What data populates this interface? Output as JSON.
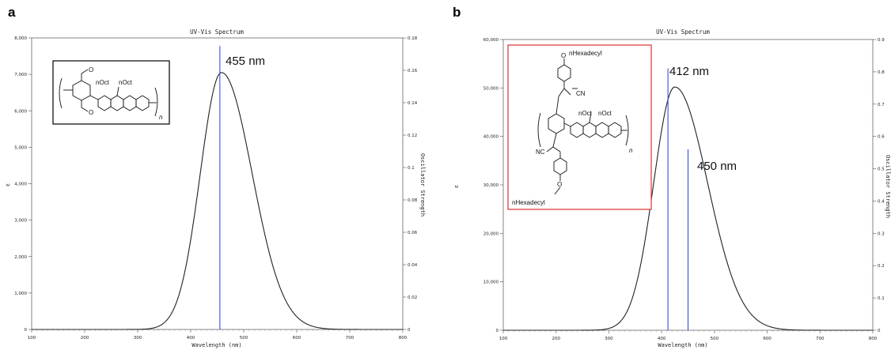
{
  "panels": {
    "a": {
      "letter": "a"
    },
    "b": {
      "letter": "b"
    }
  },
  "colors": {
    "spectrum": "#222222",
    "stick": "#3a4fd6",
    "inset_border_a": "#000000",
    "inset_border_b": "#e03030"
  },
  "chart_data": [
    {
      "type": "line",
      "title": "UV-Vis Spectrum",
      "xlabel": "Wavelength (nm)",
      "ylabel": "ε",
      "y2label": "Oscillator Strength",
      "xlim": [
        100,
        800
      ],
      "ylim": [
        0,
        8000
      ],
      "y2lim": [
        0,
        0.18
      ],
      "x_ticks": [
        100,
        200,
        300,
        400,
        500,
        600,
        700,
        800
      ],
      "y_ticks": [
        0,
        1000,
        2000,
        3000,
        4000,
        5000,
        6000,
        7000,
        8000
      ],
      "y_tick_labels": [
        "0",
        "1,000",
        "2,000",
        "3,000",
        "4,000",
        "5,000",
        "6,000",
        "7,000",
        "8,000"
      ],
      "y2_ticks": [
        0,
        0.02,
        0.04,
        0.06,
        0.08,
        0.1,
        0.12,
        0.14,
        0.16,
        0.18
      ],
      "y2_tick_labels": [
        "0",
        "0.02",
        "0.04",
        "0.06",
        "0.08",
        "0.1",
        "0.12",
        "0.14",
        "0.16",
        "0.18"
      ],
      "spectrum": {
        "peak_x": 458,
        "peak_y": 7050,
        "sigma_left": 40,
        "sigma_right": 58
      },
      "sticks": [
        {
          "x": 455,
          "f": 0.175
        }
      ],
      "annotations": [
        "455 nm"
      ],
      "inset": {
        "labels": [
          "O",
          "O",
          "nOct",
          "nOct",
          "n"
        ]
      }
    },
    {
      "type": "line",
      "title": "UV-Vis Spectrum",
      "xlabel": "Wavelength (nm)",
      "ylabel": "ε",
      "y2label": "Oscillator Strength",
      "xlim": [
        100,
        800
      ],
      "ylim": [
        0,
        60000
      ],
      "y2lim": [
        0,
        0.9
      ],
      "x_ticks": [
        100,
        200,
        300,
        400,
        500,
        600,
        700,
        800
      ],
      "y_ticks": [
        0,
        10000,
        20000,
        30000,
        40000,
        50000,
        60000
      ],
      "y_tick_labels": [
        "0",
        "10,000",
        "20,000",
        "30,000",
        "40,000",
        "50,000",
        "60,000"
      ],
      "y2_ticks": [
        0,
        0.1,
        0.2,
        0.3,
        0.4,
        0.5,
        0.6,
        0.7,
        0.8,
        0.9
      ],
      "y2_tick_labels": [
        "0",
        "0.1",
        "0.2",
        "0.3",
        "0.4",
        "0.5",
        "0.6",
        "0.7",
        "0.8",
        "0.9"
      ],
      "spectrum": {
        "peak_x": 425,
        "peak_y": 50200,
        "sigma_left": 40,
        "sigma_right": 62
      },
      "sticks": [
        {
          "x": 412,
          "f": 0.81
        },
        {
          "x": 450,
          "f": 0.56
        }
      ],
      "annotations": [
        "412 nm",
        "450 nm"
      ],
      "inset": {
        "labels": [
          "O",
          "nHexadecyl",
          "CN",
          "nOct",
          "nOct",
          "NC",
          "O",
          "nHexadecyl",
          "n"
        ]
      }
    }
  ]
}
